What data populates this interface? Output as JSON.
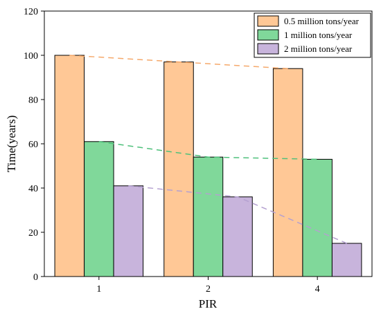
{
  "chart_data": {
    "type": "bar",
    "title": "",
    "xlabel": "PIR",
    "ylabel": "Time(years)",
    "categories": [
      "1",
      "2",
      "4"
    ],
    "ylim": [
      0,
      120
    ],
    "yticks": [
      0,
      20,
      40,
      60,
      80,
      100,
      120
    ],
    "grid": false,
    "legend_position": "top-right",
    "series": [
      {
        "name": "0.5 million tons/year",
        "values": [
          100,
          97,
          94
        ],
        "color": "#FFC896",
        "trend_color": "#F5A86A"
      },
      {
        "name": "1 million tons/year",
        "values": [
          61,
          54,
          53
        ],
        "color": "#80D89A",
        "trend_color": "#4DC07A"
      },
      {
        "name": "2 million tons/year",
        "values": [
          41,
          36,
          15
        ],
        "color": "#C8B4DC",
        "trend_color": "#B4A0D0"
      }
    ],
    "trend_lines": true
  }
}
